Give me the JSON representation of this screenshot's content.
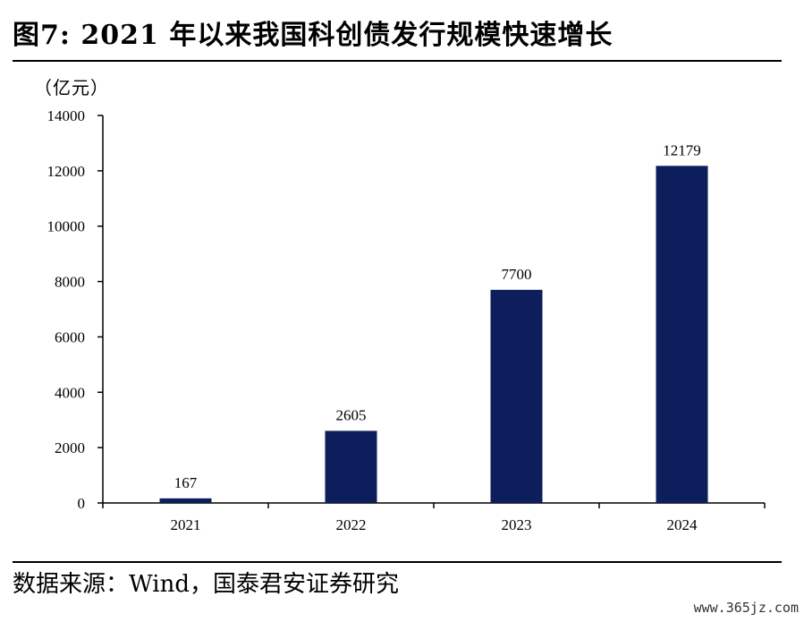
{
  "title": "图7: 2021 年以来我国科创债发行规模快速增长",
  "unit_label": "（亿元）",
  "source": "数据来源：Wind，国泰君安证券研究",
  "watermark": "www.365jz.com",
  "chart_data": {
    "type": "bar",
    "categories": [
      "2021",
      "2022",
      "2023",
      "2024"
    ],
    "values": [
      167,
      2605,
      7700,
      12179
    ],
    "data_labels": [
      "167",
      "2605",
      "7700",
      "12179"
    ],
    "ylim": [
      0,
      14000
    ],
    "yticks": [
      0,
      2000,
      4000,
      6000,
      8000,
      10000,
      12000,
      14000
    ],
    "ytick_labels": [
      "0",
      "2000",
      "4000",
      "6000",
      "8000",
      "10000",
      "12000",
      "14000"
    ],
    "xlabel": "",
    "ylabel": "",
    "grid": false,
    "legend": "none",
    "bar_color": "#0c1e5b"
  }
}
